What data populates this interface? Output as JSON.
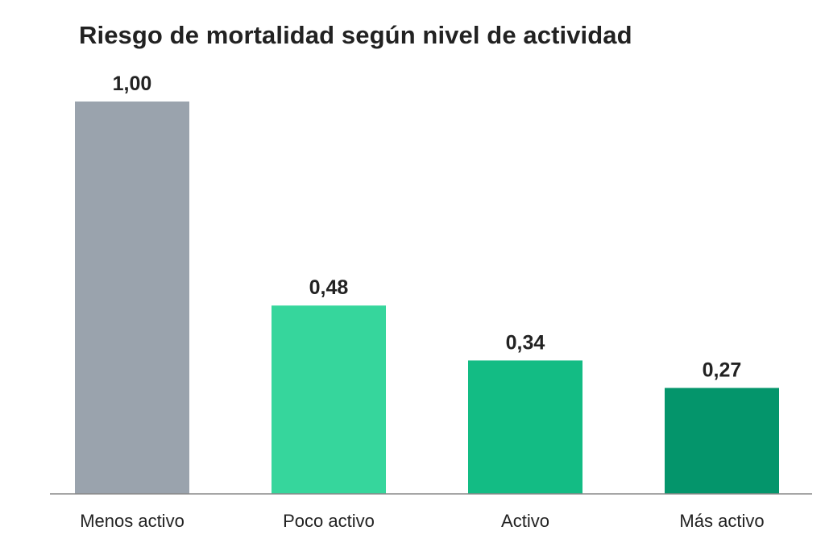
{
  "chart_data": {
    "type": "bar",
    "title": "Riesgo de mortalidad según nivel de actividad",
    "xlabel": "",
    "ylabel": "",
    "categories": [
      "Menos activo",
      "Poco activo",
      "Activo",
      "Más activo"
    ],
    "values": [
      1.0,
      0.48,
      0.34,
      0.27
    ],
    "value_labels": [
      "1,00",
      "0,48",
      "0,34",
      "0,27"
    ],
    "ylim": [
      0,
      1
    ],
    "grid": false,
    "legend": "none",
    "bar_colors": [
      "#9aa3ad",
      "#36d69c",
      "#13bc84",
      "#04956b"
    ],
    "axis_color": "#888888",
    "text_color": "#222222"
  }
}
